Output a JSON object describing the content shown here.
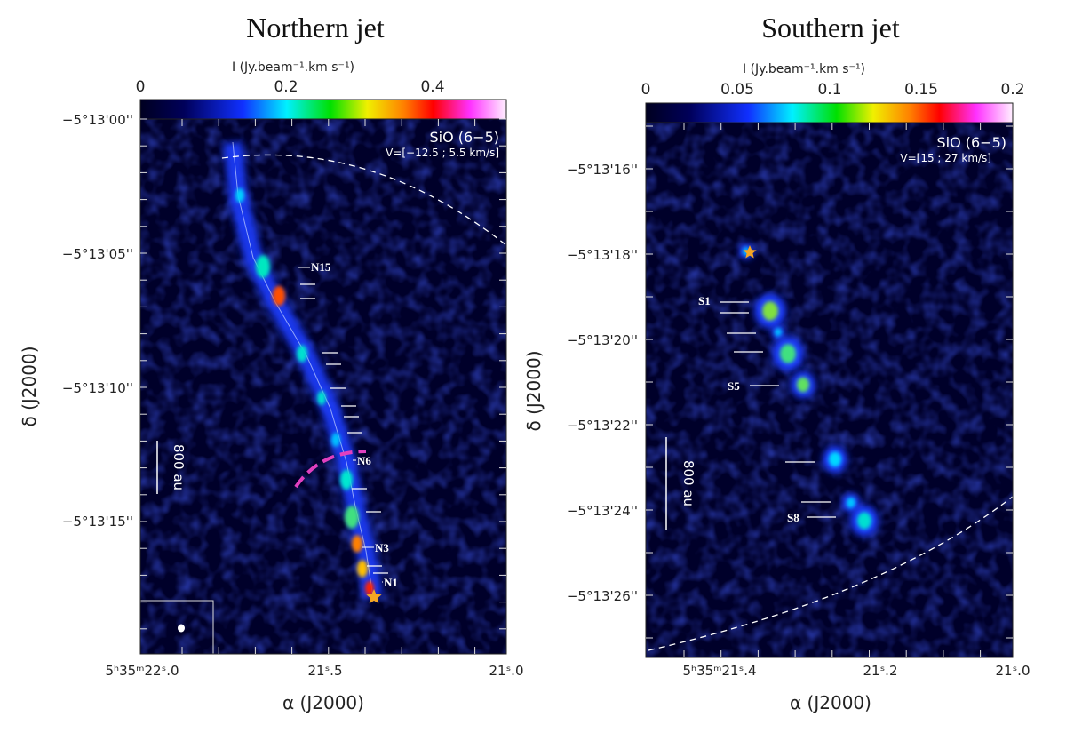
{
  "chart_data": [
    {
      "type": "heatmap",
      "title": "Northern jet",
      "colorbar": {
        "label": "I (Jy.beam⁻¹.km s⁻¹)",
        "ticks": [
          "0",
          "0.2",
          "0.4"
        ],
        "range": [
          0,
          0.5
        ]
      },
      "line": "SiO (6−5)",
      "velocity": "V=[−12.5 ; 5.5 km/s]",
      "xlabel": "α (J2000)",
      "ylabel": "δ (J2000)",
      "xticks": [
        "5h35m22.0s",
        "21.5s",
        "21.0s"
      ],
      "xtick_display": [
        "5ʰ35ᵐ22ˢ.0",
        "21ˢ.5",
        "21ˢ.0"
      ],
      "yticks": [
        "−5°13'00''",
        "−5°13'05''",
        "−5°13'10''",
        "−5°13'15''"
      ],
      "knots": [
        "N15",
        "N6",
        "N3",
        "N1"
      ],
      "scalebar": "800 au"
    },
    {
      "type": "heatmap",
      "title": "Southern jet",
      "colorbar": {
        "label": "I (Jy.beam⁻¹.km s⁻¹)",
        "ticks": [
          "0",
          "0.05",
          "0.1",
          "0.15",
          "0.2"
        ],
        "range": [
          0,
          0.2
        ]
      },
      "line": "SiO (6−5)",
      "velocity": "V=[15 ; 27 km/s]",
      "xlabel": "α (J2000)",
      "ylabel": "δ (J2000)",
      "xticks": [
        "5h35m21.4s",
        "21.2s",
        "21.0s"
      ],
      "xtick_display": [
        "5ʰ35ᵐ21ˢ.4",
        "21ˢ.2",
        "21ˢ.0"
      ],
      "yticks": [
        "−5°13'16''",
        "−5°13'18''",
        "−5°13'20''",
        "−5°13'22''",
        "−5°13'24''",
        "−5°13'26''"
      ],
      "knots": [
        "S1",
        "S5",
        "S8"
      ],
      "scalebar": "800 au"
    }
  ],
  "colors": {
    "background": "#00002a",
    "contour": "#e0e8ff",
    "arc": "#e040c0",
    "star": "#f5a623"
  }
}
